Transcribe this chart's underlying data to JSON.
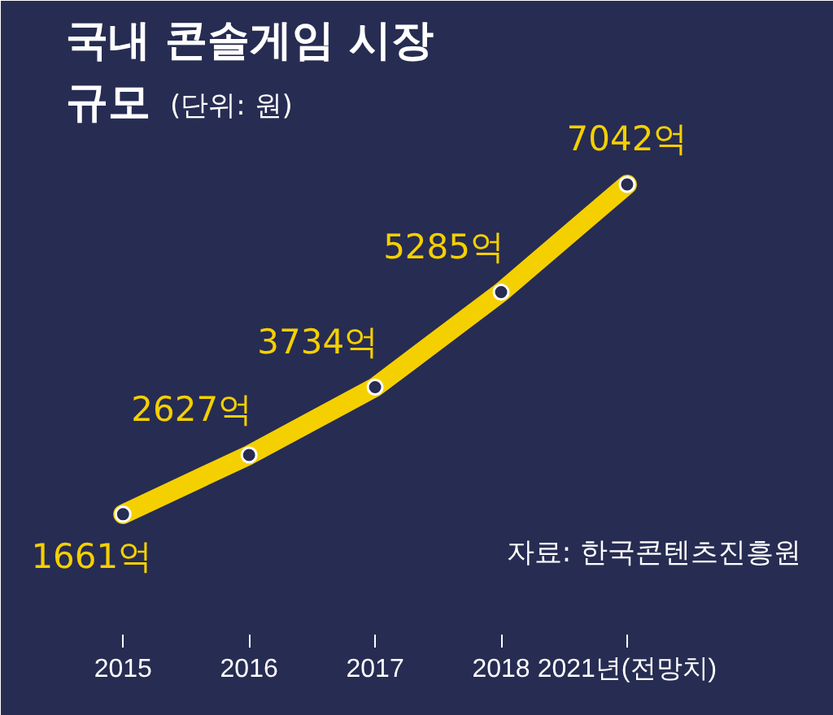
{
  "chart_data": {
    "type": "line",
    "title": "국내 콘솔게임 시장 규모",
    "subtitle": "(단위: 원)",
    "categories": [
      "2015",
      "2016",
      "2017",
      "2018",
      "2021년(전망치)"
    ],
    "values": [
      1661,
      2627,
      3734,
      5285,
      7042
    ],
    "value_labels": [
      "1661억",
      "2627억",
      "3734억",
      "5285억",
      "7042억"
    ],
    "color": "#f5d000",
    "marker": "circle",
    "line_style": "solid",
    "grid": false,
    "annotations": [
      "자료: 한국콘텐츠진흥원"
    ]
  }
}
